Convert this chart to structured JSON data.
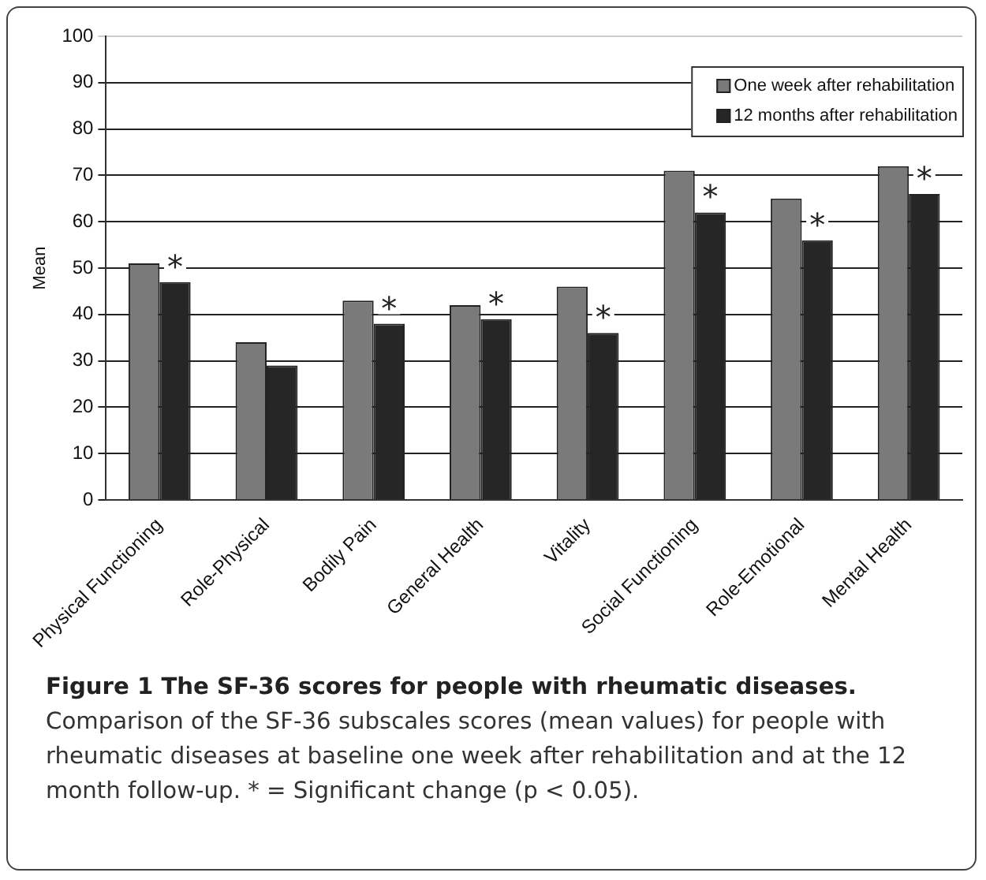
{
  "chart_data": {
    "type": "bar",
    "title": "Figure 1 The SF-36 scores for people with rheumatic diseases.",
    "ylabel": "Mean",
    "categories": [
      "Physical Functioning",
      "Role-Physical",
      "Bodily Pain",
      "General Health",
      "Vitality",
      "Social Functioning",
      "Role-Emotional",
      "Mental Health"
    ],
    "series": [
      {
        "name": "One week after rehabilitation",
        "color": "#7a7a7a",
        "values": [
          51,
          34,
          43,
          42,
          46,
          71,
          65,
          72
        ]
      },
      {
        "name": "12 months after rehabilitation",
        "color": "#262626",
        "values": [
          47,
          29,
          38,
          39,
          36,
          62,
          56,
          66
        ]
      }
    ],
    "ylim": [
      0,
      100
    ],
    "yticks": [
      0,
      10,
      20,
      30,
      40,
      50,
      60,
      70,
      80,
      90,
      100
    ],
    "grid": "y",
    "legend": "top right",
    "annotations": [
      {
        "text": "*",
        "x": "Physical Functioning",
        "y": 47
      },
      {
        "text": "*",
        "x": "Bodily Pain",
        "y": 38
      },
      {
        "text": "*",
        "x": "General Health",
        "y": 39
      },
      {
        "text": "*",
        "x": "Vitality",
        "y": 36
      },
      {
        "text": "*",
        "x": "Social Functioning",
        "y": 62
      },
      {
        "text": "*",
        "x": "Role-Emotional",
        "y": 56
      },
      {
        "text": "*",
        "x": "Mental Health",
        "y": 66
      },
      "Comparison of the SF-36 subscales scores (mean values) for people with rheumatic diseases at baseline one week after rehabilitation and at the 12 month follow-up. * = Significant change (p < 0.05)."
    ]
  }
}
